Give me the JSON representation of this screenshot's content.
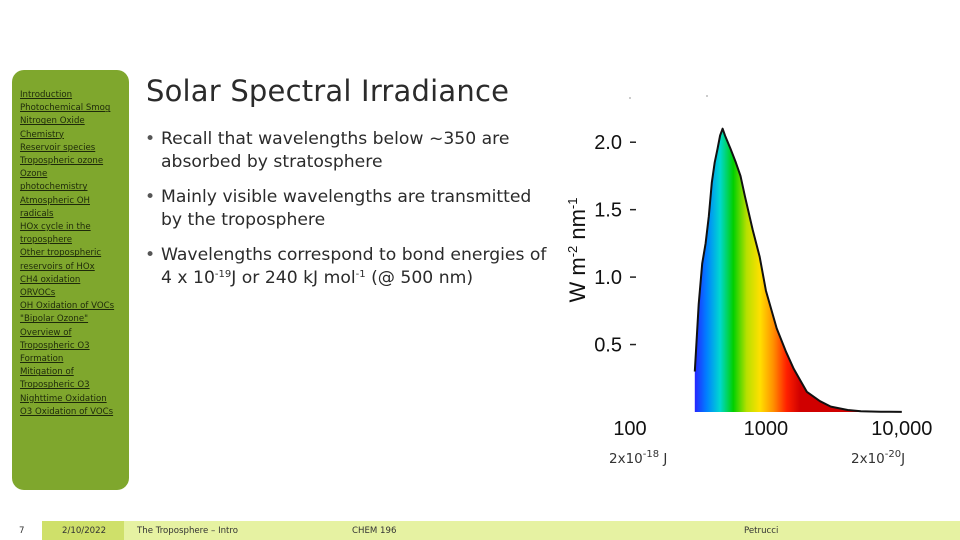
{
  "sidebar": {
    "items": [
      "Introduction",
      "Photochemical Smog",
      "Nitrogen Oxide",
      "Chemistry",
      "Reservoir species",
      "Tropospheric ozone",
      "Ozone",
      "photochemistry",
      "Atmospheric OH",
      "radicals",
      "HOx cycle in the",
      "troposphere",
      "Other tropospheric",
      "reservoirs of HOx",
      "CH4 oxidation",
      "ORVOCs",
      "OH Oxidation of VOCs",
      "\"Bipolar Ozone\"",
      "Overview of",
      "Tropospheric O3",
      "Formation",
      "Mitigation of",
      "Tropospheric O3",
      "Nighttime Oxidation",
      "O3 Oxidation of VOCs"
    ]
  },
  "slide": {
    "title": "Solar Spectral Irradiance",
    "bullets": {
      "b1": "Recall that wavelengths below ~350 are absorbed by stratosphere",
      "b2": "Mainly visible wavelengths are transmitted by the troposphere",
      "b3_pre": "Wavelengths correspond to bond energies of 4 x 10",
      "b3_exp1": "-19",
      "b3_mid": "J or 240 kJ mol",
      "b3_exp2": "-1",
      "b3_post": " (@ 500 nm)"
    },
    "energy_low_base": "2x10",
    "energy_low_exp": "-18",
    "energy_low_unit": " J",
    "energy_high_base": "2x10",
    "energy_high_exp": "-20",
    "energy_high_unit": "J"
  },
  "footer": {
    "slide_number": "7",
    "date": "2/10/2022",
    "title": "The Troposphere – Intro",
    "course": "CHEM 196",
    "author": "Petrucci"
  },
  "chart_data": {
    "type": "area",
    "title": "",
    "xlabel": "",
    "ylabel_main": "W m",
    "ylabel_exp1": "-2",
    "ylabel_mid": " nm",
    "ylabel_exp2": "-1",
    "x_scale": "log",
    "x_ticks": [
      100,
      1000,
      10000
    ],
    "x_tick_labels": [
      "100",
      "1000",
      "10,000"
    ],
    "y_ticks": [
      0.5,
      1.0,
      1.5,
      2.0
    ],
    "y_tick_labels": [
      "0.5",
      "1.0",
      "1.5",
      "2.0"
    ],
    "ylim": [
      0,
      2.35
    ],
    "xlim": [
      100,
      12500
    ],
    "x": [
      300,
      320,
      340,
      360,
      380,
      400,
      420,
      440,
      460,
      480,
      500,
      550,
      600,
      650,
      700,
      800,
      900,
      1000,
      1200,
      1400,
      1600,
      2000,
      2500,
      3000,
      4000,
      5000,
      7000,
      10000
    ],
    "y": [
      0.3,
      0.8,
      1.1,
      1.25,
      1.45,
      1.7,
      1.85,
      1.95,
      2.05,
      2.1,
      2.05,
      1.95,
      1.85,
      1.75,
      1.6,
      1.35,
      1.15,
      0.9,
      0.62,
      0.45,
      0.32,
      0.15,
      0.08,
      0.04,
      0.015,
      0.005,
      0.002,
      0.0005
    ],
    "fill_colors": [
      "#6b00c8",
      "#2a1aff",
      "#0080ff",
      "#00d8d0",
      "#00d000",
      "#b8e000",
      "#ffe000",
      "#ff9000",
      "#ff2000",
      "#d00000"
    ],
    "grid": false,
    "legend": "none"
  }
}
